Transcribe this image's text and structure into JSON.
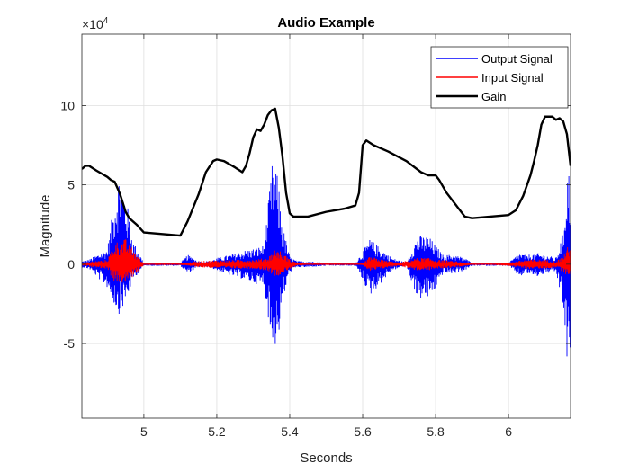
{
  "chart_data": {
    "type": "line",
    "title": "Audio Example",
    "xlabel": "Seconds",
    "ylabel": "Magnitude",
    "y_multiplier_label": "×10",
    "y_multiplier_exponent": "4",
    "xlim": [
      4.83,
      6.17
    ],
    "ylim": [
      -9.7,
      14.5
    ],
    "x_ticks": [
      5,
      5.2,
      5.4,
      5.6,
      5.8,
      6
    ],
    "x_tick_labels": [
      "5",
      "5.2",
      "5.4",
      "5.6",
      "5.8",
      "6"
    ],
    "y_ticks": [
      -5,
      0,
      5,
      10
    ],
    "y_tick_labels": [
      "-5",
      "0",
      "5",
      "10"
    ],
    "grid": true,
    "legend_position": "top-right",
    "series": [
      {
        "name": "Output Signal",
        "color": "#0000ff",
        "kind": "audio-envelope",
        "x": [
          4.83,
          4.85,
          4.9,
          4.93,
          4.95,
          4.97,
          5.0,
          5.04,
          5.1,
          5.12,
          5.15,
          5.18,
          5.2,
          5.22,
          5.25,
          5.28,
          5.3,
          5.33,
          5.355,
          5.37,
          5.38,
          5.4,
          5.42,
          5.45,
          5.5,
          5.55,
          5.58,
          5.6,
          5.62,
          5.65,
          5.68,
          5.72,
          5.75,
          5.78,
          5.8,
          5.82,
          5.85,
          5.88,
          5.9,
          5.95,
          6.0,
          6.03,
          6.05,
          6.08,
          6.1,
          6.13,
          6.15,
          6.16,
          6.17
        ],
        "upper": [
          0.2,
          0.3,
          1.0,
          5.8,
          4.5,
          1.5,
          0.1,
          0.1,
          0.1,
          0.6,
          0.2,
          0.2,
          0.4,
          0.5,
          0.7,
          0.9,
          1.0,
          1.2,
          7.1,
          5.0,
          2.5,
          0.5,
          0.2,
          0.2,
          0.1,
          0.1,
          0.1,
          0.8,
          1.6,
          1.0,
          0.4,
          0.1,
          1.8,
          1.8,
          1.2,
          0.6,
          0.6,
          0.4,
          0.1,
          0.1,
          0.1,
          0.7,
          0.6,
          0.7,
          0.6,
          0.4,
          2.0,
          6.2,
          5.8
        ],
        "lower": [
          -0.2,
          -0.3,
          -1.5,
          -3.2,
          -2.5,
          -1.0,
          -0.1,
          -0.1,
          -0.1,
          -0.6,
          -0.2,
          -0.2,
          -0.4,
          -0.6,
          -0.8,
          -1.0,
          -1.2,
          -1.4,
          -5.9,
          -4.5,
          -2.5,
          -0.5,
          -0.2,
          -0.2,
          -0.1,
          -0.1,
          -0.1,
          -1.0,
          -2.0,
          -1.2,
          -0.4,
          -0.1,
          -2.2,
          -2.2,
          -1.6,
          -0.6,
          -0.6,
          -0.4,
          -0.1,
          -0.1,
          -0.1,
          -0.8,
          -0.6,
          -0.8,
          -0.6,
          -0.5,
          -2.8,
          -6.5,
          -5.6
        ]
      },
      {
        "name": "Input Signal",
        "color": "#ff0000",
        "kind": "audio-envelope",
        "x": [
          4.83,
          4.85,
          4.9,
          4.92,
          4.95,
          4.97,
          4.99,
          5.0,
          5.05,
          5.1,
          5.15,
          5.2,
          5.3,
          5.34,
          5.36,
          5.38,
          5.4,
          5.42,
          5.45,
          5.5,
          5.55,
          5.6,
          5.62,
          5.65,
          5.7,
          5.75,
          5.78,
          5.8,
          5.85,
          5.9,
          5.95,
          6.0,
          6.05,
          6.1,
          6.13,
          6.15,
          6.16,
          6.17
        ],
        "upper": [
          0.1,
          0.15,
          0.3,
          1.4,
          1.6,
          1.0,
          0.3,
          0.05,
          0.05,
          0.05,
          0.2,
          0.25,
          0.3,
          0.4,
          1.0,
          0.8,
          0.3,
          0.1,
          0.05,
          0.05,
          0.05,
          0.05,
          0.5,
          0.3,
          0.1,
          0.4,
          0.4,
          0.3,
          0.2,
          0.05,
          0.05,
          0.1,
          0.3,
          0.3,
          0.2,
          0.5,
          1.1,
          1.0
        ],
        "lower": [
          -0.1,
          -0.15,
          -0.3,
          -1.2,
          -1.2,
          -0.8,
          -0.3,
          -0.05,
          -0.05,
          -0.05,
          -0.2,
          -0.25,
          -0.3,
          -0.4,
          -0.8,
          -0.6,
          -0.3,
          -0.1,
          -0.05,
          -0.05,
          -0.05,
          -0.05,
          -0.5,
          -0.3,
          -0.1,
          -0.4,
          -0.4,
          -0.3,
          -0.2,
          -0.05,
          -0.05,
          -0.1,
          -0.3,
          -0.3,
          -0.2,
          -0.5,
          -0.7,
          -0.6
        ]
      },
      {
        "name": "Gain",
        "color": "#000000",
        "kind": "line",
        "x": [
          4.83,
          4.84,
          4.85,
          4.87,
          4.9,
          4.91,
          4.92,
          4.935,
          4.95,
          4.96,
          4.98,
          5.0,
          5.05,
          5.1,
          5.12,
          5.15,
          5.17,
          5.19,
          5.2,
          5.22,
          5.25,
          5.27,
          5.28,
          5.29,
          5.3,
          5.31,
          5.32,
          5.33,
          5.34,
          5.35,
          5.36,
          5.37,
          5.38,
          5.39,
          5.4,
          5.41,
          5.42,
          5.45,
          5.5,
          5.55,
          5.58,
          5.59,
          5.6,
          5.61,
          5.63,
          5.67,
          5.72,
          5.76,
          5.78,
          5.8,
          5.81,
          5.83,
          5.86,
          5.88,
          5.9,
          5.95,
          6.0,
          6.02,
          6.04,
          6.06,
          6.07,
          6.08,
          6.09,
          6.1,
          6.12,
          6.13,
          6.14,
          6.15,
          6.16,
          6.17
        ],
        "y": [
          6.0,
          6.2,
          6.2,
          5.9,
          5.5,
          5.3,
          5.2,
          4.4,
          3.3,
          2.9,
          2.5,
          2.0,
          1.9,
          1.8,
          2.7,
          4.4,
          5.8,
          6.5,
          6.6,
          6.5,
          6.1,
          5.8,
          6.2,
          7.0,
          8.0,
          8.5,
          8.4,
          8.8,
          9.4,
          9.7,
          9.8,
          8.6,
          6.8,
          4.5,
          3.2,
          3.0,
          3.0,
          3.0,
          3.3,
          3.5,
          3.7,
          4.5,
          7.5,
          7.8,
          7.5,
          7.1,
          6.5,
          5.8,
          5.6,
          5.6,
          5.3,
          4.5,
          3.6,
          3.0,
          2.9,
          3.0,
          3.1,
          3.4,
          4.3,
          5.6,
          6.5,
          7.5,
          8.8,
          9.3,
          9.3,
          9.1,
          9.2,
          9.0,
          8.2,
          6.2
        ]
      }
    ]
  }
}
